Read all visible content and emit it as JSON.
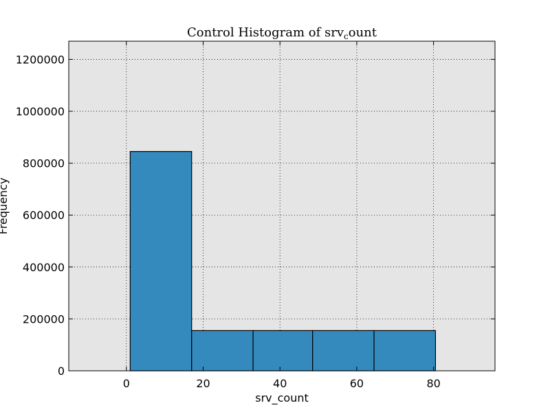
{
  "chart_data": {
    "type": "bar",
    "title": "Control Histogram of srv",
    "title_subscript": "c",
    "title_suffix": "ount",
    "xlabel": "srv_count",
    "ylabel": "Frequency",
    "xlim": [
      -15,
      96
    ],
    "ylim": [
      0,
      1270000
    ],
    "xticks": [
      0,
      20,
      40,
      60,
      80
    ],
    "yticks": [
      0,
      200000,
      400000,
      600000,
      800000,
      1000000,
      1200000
    ],
    "bins": [
      {
        "x0": 1,
        "x1": 17,
        "value": 845000
      },
      {
        "x0": 17,
        "x1": 33,
        "value": 155000
      },
      {
        "x0": 33,
        "x1": 48.5,
        "value": 155000
      },
      {
        "x0": 48.5,
        "x1": 64.5,
        "value": 155000
      },
      {
        "x0": 64.5,
        "x1": 80.5,
        "value": 155000
      }
    ],
    "grid": true,
    "colors": {
      "bar": "#348abd",
      "background": "#e5e5e5",
      "edge": "#000000"
    }
  }
}
